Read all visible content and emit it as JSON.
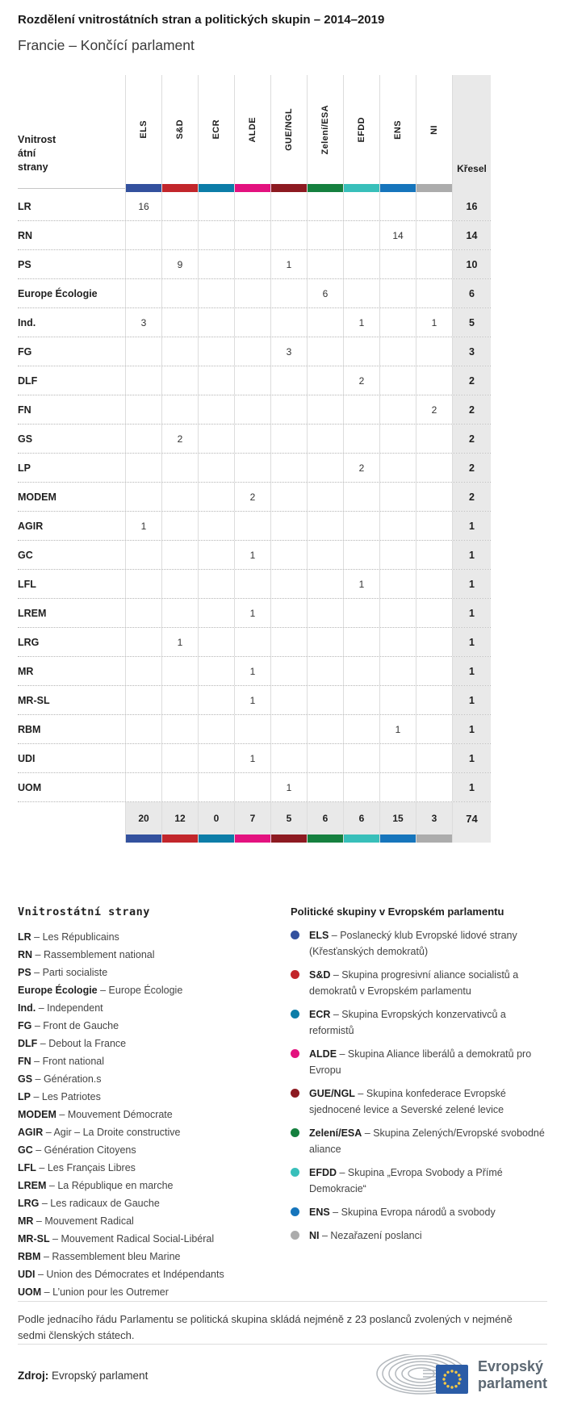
{
  "separator": "–",
  "page": {
    "title": "Rozdělení vnitrostátních stran a politických skupin – 2014–2019",
    "subtitle": "Francie – Končící parlament"
  },
  "table": {
    "row_header": "Vnitrost\nátní\nstrany",
    "seats_header": "Křesel",
    "groups": [
      {
        "id": "ELS",
        "color": "#33519E"
      },
      {
        "id": "S&D",
        "color": "#C2262B"
      },
      {
        "id": "ECR",
        "color": "#0C7DA8"
      },
      {
        "id": "ALDE",
        "color": "#E3127F"
      },
      {
        "id": "GUE/NGL",
        "color": "#8D1A21"
      },
      {
        "id": "Zelení/ESA",
        "color": "#15803F"
      },
      {
        "id": "EFDD",
        "color": "#38BFBA"
      },
      {
        "id": "ENS",
        "color": "#1675BC"
      },
      {
        "id": "NI",
        "color": "#ACACAC"
      }
    ],
    "rows": [
      {
        "party": "LR",
        "values": [
          "16",
          "",
          "",
          "",
          "",
          "",
          "",
          "",
          ""
        ],
        "total": "16"
      },
      {
        "party": "RN",
        "values": [
          "",
          "",
          "",
          "",
          "",
          "",
          "",
          "14",
          ""
        ],
        "total": "14"
      },
      {
        "party": "PS",
        "values": [
          "",
          "9",
          "",
          "",
          "1",
          "",
          "",
          "",
          ""
        ],
        "total": "10"
      },
      {
        "party": "Europe Écologie",
        "values": [
          "",
          "",
          "",
          "",
          "",
          "6",
          "",
          "",
          ""
        ],
        "total": "6"
      },
      {
        "party": "Ind.",
        "values": [
          "3",
          "",
          "",
          "",
          "",
          "",
          "1",
          "",
          "1"
        ],
        "total": "5"
      },
      {
        "party": "FG",
        "values": [
          "",
          "",
          "",
          "",
          "3",
          "",
          "",
          "",
          ""
        ],
        "total": "3"
      },
      {
        "party": "DLF",
        "values": [
          "",
          "",
          "",
          "",
          "",
          "",
          "2",
          "",
          ""
        ],
        "total": "2"
      },
      {
        "party": "FN",
        "values": [
          "",
          "",
          "",
          "",
          "",
          "",
          "",
          "",
          "2"
        ],
        "total": "2"
      },
      {
        "party": "GS",
        "values": [
          "",
          "2",
          "",
          "",
          "",
          "",
          "",
          "",
          ""
        ],
        "total": "2"
      },
      {
        "party": "LP",
        "values": [
          "",
          "",
          "",
          "",
          "",
          "",
          "2",
          "",
          ""
        ],
        "total": "2"
      },
      {
        "party": "MODEM",
        "values": [
          "",
          "",
          "",
          "2",
          "",
          "",
          "",
          "",
          ""
        ],
        "total": "2"
      },
      {
        "party": "AGIR",
        "values": [
          "1",
          "",
          "",
          "",
          "",
          "",
          "",
          "",
          ""
        ],
        "total": "1"
      },
      {
        "party": "GC",
        "values": [
          "",
          "",
          "",
          "1",
          "",
          "",
          "",
          "",
          ""
        ],
        "total": "1"
      },
      {
        "party": "LFL",
        "values": [
          "",
          "",
          "",
          "",
          "",
          "",
          "1",
          "",
          ""
        ],
        "total": "1"
      },
      {
        "party": "LREM",
        "values": [
          "",
          "",
          "",
          "1",
          "",
          "",
          "",
          "",
          ""
        ],
        "total": "1"
      },
      {
        "party": "LRG",
        "values": [
          "",
          "1",
          "",
          "",
          "",
          "",
          "",
          "",
          ""
        ],
        "total": "1"
      },
      {
        "party": "MR",
        "values": [
          "",
          "",
          "",
          "1",
          "",
          "",
          "",
          "",
          ""
        ],
        "total": "1"
      },
      {
        "party": "MR-SL",
        "values": [
          "",
          "",
          "",
          "1",
          "",
          "",
          "",
          "",
          ""
        ],
        "total": "1"
      },
      {
        "party": "RBM",
        "values": [
          "",
          "",
          "",
          "",
          "",
          "",
          "",
          "1",
          ""
        ],
        "total": "1"
      },
      {
        "party": "UDI",
        "values": [
          "",
          "",
          "",
          "1",
          "",
          "",
          "",
          "",
          ""
        ],
        "total": "1"
      },
      {
        "party": "UOM",
        "values": [
          "",
          "",
          "",
          "",
          "1",
          "",
          "",
          "",
          ""
        ],
        "total": "1"
      }
    ],
    "totals": {
      "values": [
        "20",
        "12",
        "0",
        "7",
        "5",
        "6",
        "6",
        "15",
        "3"
      ],
      "total": "74"
    }
  },
  "chart_data": {
    "type": "table",
    "title": "Rozdělení vnitrostátních stran a politických skupin – 2014–2019",
    "subtitle": "Francie – Končící parlament",
    "columns": [
      "ELS",
      "S&D",
      "ECR",
      "ALDE",
      "GUE/NGL",
      "Zelení/ESA",
      "EFDD",
      "ENS",
      "NI",
      "Křesel"
    ],
    "rows": [
      {
        "party": "LR",
        "ELS": 16,
        "total": 16
      },
      {
        "party": "RN",
        "ENS": 14,
        "total": 14
      },
      {
        "party": "PS",
        "S&D": 9,
        "GUE/NGL": 1,
        "total": 10
      },
      {
        "party": "Europe Écologie",
        "Zelení/ESA": 6,
        "total": 6
      },
      {
        "party": "Ind.",
        "ELS": 3,
        "EFDD": 1,
        "NI": 1,
        "total": 5
      },
      {
        "party": "FG",
        "GUE/NGL": 3,
        "total": 3
      },
      {
        "party": "DLF",
        "EFDD": 2,
        "total": 2
      },
      {
        "party": "FN",
        "NI": 2,
        "total": 2
      },
      {
        "party": "GS",
        "S&D": 2,
        "total": 2
      },
      {
        "party": "LP",
        "EFDD": 2,
        "total": 2
      },
      {
        "party": "MODEM",
        "ALDE": 2,
        "total": 2
      },
      {
        "party": "AGIR",
        "ELS": 1,
        "total": 1
      },
      {
        "party": "GC",
        "ALDE": 1,
        "total": 1
      },
      {
        "party": "LFL",
        "EFDD": 1,
        "total": 1
      },
      {
        "party": "LREM",
        "ALDE": 1,
        "total": 1
      },
      {
        "party": "LRG",
        "S&D": 1,
        "total": 1
      },
      {
        "party": "MR",
        "ALDE": 1,
        "total": 1
      },
      {
        "party": "MR-SL",
        "ALDE": 1,
        "total": 1
      },
      {
        "party": "RBM",
        "ENS": 1,
        "total": 1
      },
      {
        "party": "UDI",
        "ALDE": 1,
        "total": 1
      },
      {
        "party": "UOM",
        "GUE/NGL": 1,
        "total": 1
      }
    ],
    "column_totals": {
      "ELS": 20,
      "S&D": 12,
      "ECR": 0,
      "ALDE": 7,
      "GUE/NGL": 5,
      "Zelení/ESA": 6,
      "EFDD": 6,
      "ENS": 15,
      "NI": 3,
      "Křesel": 74
    }
  },
  "legend_parties": {
    "heading": "Vnitrostátní strany",
    "items": [
      {
        "abbr": "LR",
        "name": "Les Républicains"
      },
      {
        "abbr": "RN",
        "name": "Rassemblement national"
      },
      {
        "abbr": "PS",
        "name": "Parti socialiste"
      },
      {
        "abbr": "Europe Écologie",
        "name": "Europe Écologie"
      },
      {
        "abbr": "Ind.",
        "name": "Independent"
      },
      {
        "abbr": "FG",
        "name": "Front de Gauche"
      },
      {
        "abbr": "DLF",
        "name": "Debout la France"
      },
      {
        "abbr": "FN",
        "name": "Front national"
      },
      {
        "abbr": "GS",
        "name": "Génération.s"
      },
      {
        "abbr": "LP",
        "name": "Les Patriotes"
      },
      {
        "abbr": "MODEM",
        "name": "Mouvement Démocrate"
      },
      {
        "abbr": "AGIR",
        "name": "Agir – La Droite constructive"
      },
      {
        "abbr": "GC",
        "name": "Génération Citoyens"
      },
      {
        "abbr": "LFL",
        "name": "Les Français Libres"
      },
      {
        "abbr": "LREM",
        "name": "La République en marche"
      },
      {
        "abbr": "LRG",
        "name": "Les radicaux de Gauche"
      },
      {
        "abbr": "MR",
        "name": "Mouvement Radical"
      },
      {
        "abbr": "MR-SL",
        "name": "Mouvement Radical Social-Libéral"
      },
      {
        "abbr": "RBM",
        "name": "Rassemblement bleu Marine"
      },
      {
        "abbr": "UDI",
        "name": "Union des Démocrates et Indépendants"
      },
      {
        "abbr": "UOM",
        "name": "L’union pour les Outremer"
      }
    ]
  },
  "legend_groups": {
    "heading": "Politické skupiny v Evropském parlamentu",
    "items": [
      {
        "abbr": "ELS",
        "color": "#33519E",
        "desc": "Poslanecký klub Evropské lidové strany (Křesťanských demokratů)"
      },
      {
        "abbr": "S&D",
        "color": "#C2262B",
        "desc": "Skupina progresivní aliance socialistů a demokratů v Evropském parlamentu"
      },
      {
        "abbr": "ECR",
        "color": "#0C7DA8",
        "desc": "Skupina Evropských konzervativců a reformistů"
      },
      {
        "abbr": "ALDE",
        "color": "#E3127F",
        "desc": "Skupina Aliance liberálů a demokratů pro Evropu"
      },
      {
        "abbr": "GUE/NGL",
        "color": "#8D1A21",
        "desc": "Skupina konfederace Evropské sjednocené levice a Severské zelené levice"
      },
      {
        "abbr": "Zelení/ESA",
        "color": "#15803F",
        "desc": "Skupina Zelených/Evropské svobodné aliance"
      },
      {
        "abbr": "EFDD",
        "color": "#38BFBA",
        "desc": "Skupina „Evropa Svobody a Přímé Demokracie“"
      },
      {
        "abbr": "ENS",
        "color": "#1675BC",
        "desc": "Skupina Evropa národů a svobody"
      },
      {
        "abbr": "NI",
        "color": "#ACACAC",
        "desc": "Nezařazení poslanci"
      }
    ]
  },
  "footer": {
    "note": "Podle jednacího řádu Parlamentu se politická skupina skládá nejméně z 23 poslanců zvolených v nejméně sedmi členských státech.",
    "source_label": "Zdroj:",
    "source": "Evropský parlament",
    "logo_text_line1": "Evropský",
    "logo_text_line2": "parlament"
  }
}
